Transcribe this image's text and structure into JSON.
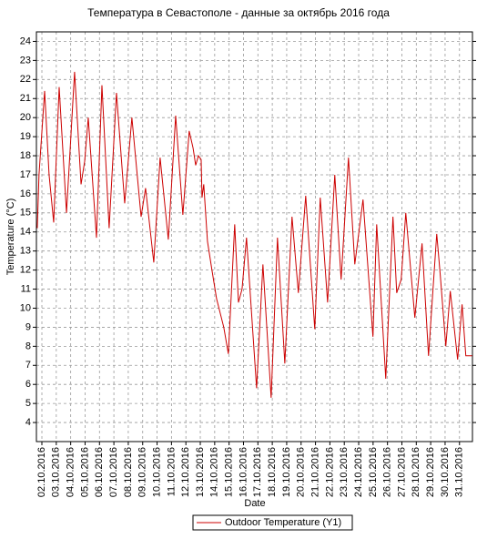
{
  "chart_data": {
    "type": "line",
    "title": "Температура в Севастополе - данные за октябрь 2016 года",
    "x_label": "Date",
    "y_label": "Temperature (°C)",
    "series": [
      {
        "name": "Outdoor Temperature (Y1)",
        "color": "#cc0000",
        "x": [
          1.68,
          1.8,
          2.19,
          2.5,
          2.82,
          3.2,
          3.71,
          4.27,
          4.72,
          4.97,
          5.22,
          5.79,
          6.17,
          6.67,
          7.18,
          7.75,
          8.25,
          8.89,
          9.2,
          9.77,
          10.21,
          10.78,
          11.29,
          11.79,
          12.23,
          12.5,
          12.68,
          12.87,
          13.06,
          13.12,
          13.24,
          13.5,
          13.81,
          14.13,
          14.63,
          14.95,
          15.39,
          15.65,
          15.9,
          16.21,
          16.91,
          17.35,
          17.92,
          18.36,
          18.87,
          19.37,
          19.81,
          20.32,
          20.95,
          21.33,
          21.84,
          22.34,
          22.78,
          23.29,
          23.73,
          24.3,
          24.99,
          25.25,
          25.88,
          26.38,
          26.64,
          26.95,
          27.27,
          27.9,
          28.4,
          28.85,
          29.42,
          29.67,
          30.05,
          30.36,
          30.87,
          31.18,
          31.44,
          31.88
        ],
        "values": [
          14.2,
          17,
          21.4,
          17,
          14.5,
          21.6,
          15,
          22.4,
          16.5,
          17.7,
          20,
          13.7,
          21.7,
          14.2,
          21.3,
          15.5,
          20,
          14.8,
          16.3,
          12.4,
          17.9,
          13.6,
          20.1,
          14.9,
          19.3,
          18.4,
          17.5,
          18,
          17.8,
          15.8,
          16.5,
          13.5,
          12,
          10.5,
          9,
          7.6,
          14.4,
          10.3,
          11,
          13.7,
          5.8,
          12.3,
          5.3,
          13.7,
          7.1,
          14.8,
          10.8,
          15.9,
          8.9,
          15.8,
          10.3,
          17,
          11.5,
          17.9,
          12.3,
          15.7,
          8.5,
          14.4,
          6.3,
          14.8,
          10.8,
          11.5,
          15,
          9.5,
          13.4,
          7.5,
          13.9,
          11.7,
          8,
          10.9,
          7.3,
          10.2,
          7.5,
          7.5
        ]
      }
    ],
    "xlim": [
      1.62,
      31.9
    ],
    "xticks": [
      {
        "value": 2,
        "label": "02.10.2016"
      },
      {
        "value": 3,
        "label": "03.10.2016"
      },
      {
        "value": 4,
        "label": "04.10.2016"
      },
      {
        "value": 5,
        "label": "05.10.2016"
      },
      {
        "value": 6,
        "label": "06.10.2016"
      },
      {
        "value": 7,
        "label": "07.10.2016"
      },
      {
        "value": 8,
        "label": "08.10.2016"
      },
      {
        "value": 9,
        "label": "09.10.2016"
      },
      {
        "value": 10,
        "label": "10.10.2016"
      },
      {
        "value": 11,
        "label": "11.10.2016"
      },
      {
        "value": 12,
        "label": "12.10.2016"
      },
      {
        "value": 13,
        "label": "13.10.2016"
      },
      {
        "value": 14,
        "label": "14.10.2016"
      },
      {
        "value": 15,
        "label": "15.10.2016"
      },
      {
        "value": 16,
        "label": "16.10.2016"
      },
      {
        "value": 17,
        "label": "17.10.2016"
      },
      {
        "value": 18,
        "label": "18.10.2016"
      },
      {
        "value": 19,
        "label": "19.10.2016"
      },
      {
        "value": 20,
        "label": "20.10.2016"
      },
      {
        "value": 21,
        "label": "21.10.2016"
      },
      {
        "value": 22,
        "label": "22.10.2016"
      },
      {
        "value": 23,
        "label": "23.10.2016"
      },
      {
        "value": 24,
        "label": "24.10.2016"
      },
      {
        "value": 25,
        "label": "25.10.2016"
      },
      {
        "value": 26,
        "label": "26.10.2016"
      },
      {
        "value": 27,
        "label": "27.10.2016"
      },
      {
        "value": 28,
        "label": "28.10.2016"
      },
      {
        "value": 29,
        "label": "29.10.2016"
      },
      {
        "value": 30,
        "label": "30.10.2016"
      },
      {
        "value": 31,
        "label": "31.10.2016"
      }
    ],
    "ylim": [
      3,
      24.5
    ],
    "yticks": [
      4,
      5,
      6,
      7,
      8,
      9,
      10,
      11,
      12,
      13,
      14,
      15,
      16,
      17,
      18,
      19,
      20,
      21,
      22,
      23,
      24
    ],
    "grid": true
  }
}
